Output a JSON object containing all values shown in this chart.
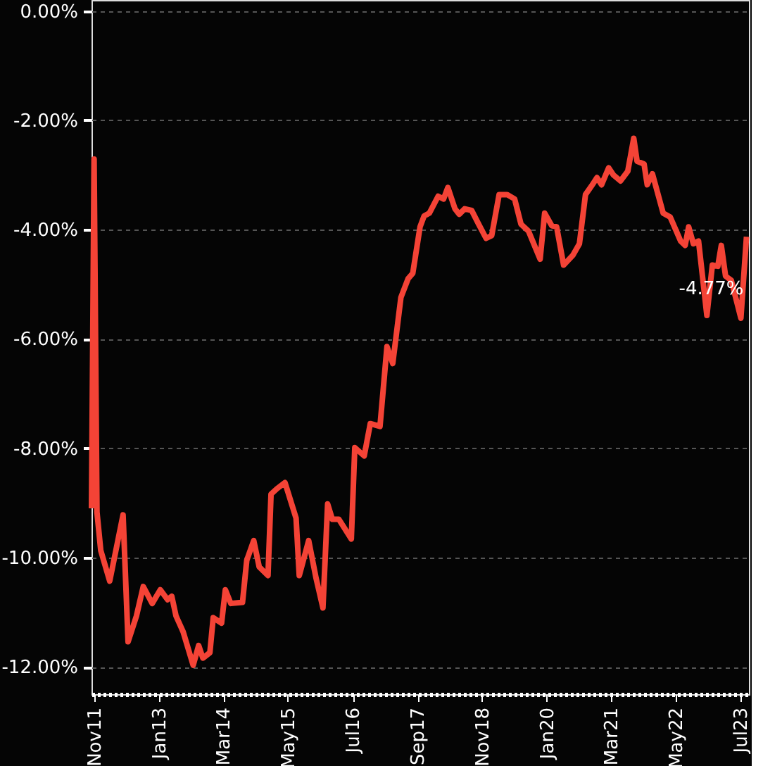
{
  "chart_data": {
    "type": "line",
    "x": [
      "2011-10-15",
      "2011-11-01",
      "2011-11-20",
      "2011-12-15",
      "2012-02-12",
      "2012-05-10",
      "2012-06-12",
      "2012-08-06",
      "2012-09-20",
      "2012-11-18",
      "2013-01-10",
      "2013-02-27",
      "2013-03-27",
      "2013-04-24",
      "2013-06-10",
      "2013-08-15",
      "2013-09-20",
      "2013-10-18",
      "2013-12-03",
      "2013-12-25",
      "2014-02-18",
      "2014-03-15",
      "2014-04-20",
      "2014-07-06",
      "2014-08-03",
      "2014-09-18",
      "2014-10-24",
      "2014-12-21",
      "2015-01-10",
      "2015-02-18",
      "2015-04-12",
      "2015-06-24",
      "2015-07-15",
      "2015-09-15",
      "2015-11-03",
      "2015-12-18",
      "2016-01-18",
      "2016-02-18",
      "2016-04-01",
      "2016-06-22",
      "2016-07-15",
      "2016-09-15",
      "2016-10-25",
      "2016-12-28",
      "2017-02-12",
      "2017-03-22",
      "2017-05-15",
      "2017-07-01",
      "2017-08-01",
      "2017-09-18",
      "2017-10-15",
      "2017-11-18",
      "2018-01-15",
      "2018-02-20",
      "2018-03-20",
      "2018-05-06",
      "2018-06-03",
      "2018-07-09",
      "2018-08-24",
      "2018-10-09",
      "2018-11-27",
      "2019-01-03",
      "2019-02-21",
      "2019-04-15",
      "2019-06-03",
      "2019-07-15",
      "2019-09-03",
      "2019-11-18",
      "2019-12-18",
      "2020-02-03",
      "2020-03-06",
      "2020-04-21",
      "2020-06-21",
      "2020-08-03",
      "2020-09-12",
      "2020-10-27",
      "2020-11-27",
      "2020-12-27",
      "2021-02-12",
      "2021-03-15",
      "2021-05-01",
      "2021-06-18",
      "2021-07-27",
      "2021-08-18",
      "2021-10-03",
      "2021-10-24",
      "2021-11-27",
      "2022-02-06",
      "2022-03-24",
      "2022-06-01",
      "2022-07-01",
      "2022-07-24",
      "2022-08-24",
      "2022-09-27",
      "2022-11-21",
      "2022-12-27",
      "2023-02-01",
      "2023-02-24",
      "2023-03-24",
      "2023-05-01",
      "2023-07-03",
      "2023-08-09"
    ],
    "series": [
      {
        "color": "#f44336",
        "values": [
          -9.1,
          -2.71,
          -9.17,
          -9.87,
          -10.43,
          -9.22,
          -11.54,
          -11.07,
          -10.53,
          -10.84,
          -10.59,
          -10.77,
          -10.71,
          -11.07,
          -11.36,
          -11.97,
          -11.61,
          -11.84,
          -11.74,
          -11.1,
          -11.2,
          -10.59,
          -10.84,
          -10.82,
          -10.05,
          -9.69,
          -10.17,
          -10.33,
          -8.84,
          -8.74,
          -8.63,
          -9.28,
          -10.33,
          -9.69,
          -10.38,
          -10.92,
          -9.02,
          -9.3,
          -9.3,
          -9.66,
          -7.99,
          -8.14,
          -7.55,
          -7.6,
          -6.14,
          -6.45,
          -5.24,
          -4.9,
          -4.8,
          -3.95,
          -3.75,
          -3.7,
          -3.39,
          -3.44,
          -3.23,
          -3.62,
          -3.72,
          -3.62,
          -3.65,
          -3.9,
          -4.16,
          -4.11,
          -3.36,
          -3.36,
          -3.44,
          -3.9,
          -4.03,
          -4.54,
          -3.7,
          -3.93,
          -3.95,
          -4.65,
          -4.47,
          -4.26,
          -3.36,
          -3.18,
          -3.05,
          -3.18,
          -2.87,
          -3.0,
          -3.11,
          -2.93,
          -2.33,
          -2.75,
          -2.8,
          -3.18,
          -2.98,
          -3.7,
          -3.77,
          -4.21,
          -4.29,
          -3.95,
          -4.26,
          -4.21,
          -5.57,
          -4.65,
          -4.67,
          -4.29,
          -4.85,
          -4.93,
          -5.62,
          -4.13
        ]
      }
    ],
    "xlim": [
      "2011-10-15",
      "2023-08-25"
    ],
    "xticks": [
      {
        "value": "2011-11-01",
        "label": "Nov11"
      },
      {
        "value": "2013-01-01",
        "label": "Jan13"
      },
      {
        "value": "2014-03-01",
        "label": "Mar14"
      },
      {
        "value": "2015-05-01",
        "label": "May15"
      },
      {
        "value": "2016-07-01",
        "label": "Jul16"
      },
      {
        "value": "2017-09-01",
        "label": "Sep17"
      },
      {
        "value": "2018-11-01",
        "label": "Nov18"
      },
      {
        "value": "2020-01-01",
        "label": "Jan20"
      },
      {
        "value": "2021-03-01",
        "label": "Mar21"
      },
      {
        "value": "2022-05-01",
        "label": "May22"
      },
      {
        "value": "2023-07-01",
        "label": "Jul23"
      }
    ],
    "ylim": [
      -12.5,
      0.2
    ],
    "yticks": [
      {
        "value": 0,
        "label": "0.00%"
      },
      {
        "value": -2,
        "label": "-2.00%"
      },
      {
        "value": -4,
        "label": "-4.00%"
      },
      {
        "value": -6,
        "label": "-6.00%"
      },
      {
        "value": -8,
        "label": "-8.00%"
      },
      {
        "value": -10,
        "label": "-10.00%"
      },
      {
        "value": -12,
        "label": "-12.00%"
      }
    ],
    "grid": "y",
    "marker": "none",
    "line_style": "solid",
    "annotations": [
      {
        "text": "-4.77%",
        "x": "2023-08-09",
        "y": -4.77
      }
    ]
  }
}
